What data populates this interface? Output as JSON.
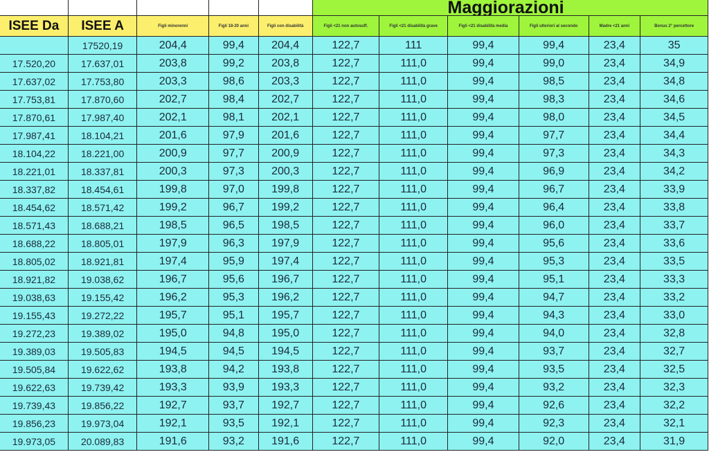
{
  "section_title": "Maggiorazioni",
  "columns": [
    "ISEE Da",
    "ISEE A",
    "Figli minorenni",
    "Figli 18-20 anni",
    "Figli con disabilità",
    "Figli <21 non autosuff.",
    "Figli <21 disabilità grave",
    "Figli <21 disabilità media",
    "Figli ulteriori al secondo",
    "Madre <21 anni",
    "Bonus 2° percettore"
  ],
  "colors": {
    "header_yellow": "#fbef6d",
    "header_green": "#9ef53c",
    "cell_cyan": "#8ef2f0"
  },
  "rows": [
    [
      "",
      "17520,19",
      "204,4",
      "99,4",
      "204,4",
      "122,7",
      "111",
      "99,4",
      "99,4",
      "23,4",
      "35"
    ],
    [
      "17.520,20",
      "17.637,01",
      "203,8",
      "99,2",
      "203,8",
      "122,7",
      "111,0",
      "99,4",
      "99,0",
      "23,4",
      "34,9"
    ],
    [
      "17.637,02",
      "17.753,80",
      "203,3",
      "98,6",
      "203,3",
      "122,7",
      "111,0",
      "99,4",
      "98,5",
      "23,4",
      "34,8"
    ],
    [
      "17.753,81",
      "17.870,60",
      "202,7",
      "98,4",
      "202,7",
      "122,7",
      "111,0",
      "99,4",
      "98,3",
      "23,4",
      "34,6"
    ],
    [
      "17.870,61",
      "17.987,40",
      "202,1",
      "98,1",
      "202,1",
      "122,7",
      "111,0",
      "99,4",
      "98,0",
      "23,4",
      "34,5"
    ],
    [
      "17.987,41",
      "18.104,21",
      "201,6",
      "97,9",
      "201,6",
      "122,7",
      "111,0",
      "99,4",
      "97,7",
      "23,4",
      "34,4"
    ],
    [
      "18.104,22",
      "18.221,00",
      "200,9",
      "97,7",
      "200,9",
      "122,7",
      "111,0",
      "99,4",
      "97,3",
      "23,4",
      "34,3"
    ],
    [
      "18.221,01",
      "18.337,81",
      "200,3",
      "97,3",
      "200,3",
      "122,7",
      "111,0",
      "99,4",
      "96,9",
      "23,4",
      "34,2"
    ],
    [
      "18.337,82",
      "18.454,61",
      "199,8",
      "97,0",
      "199,8",
      "122,7",
      "111,0",
      "99,4",
      "96,7",
      "23,4",
      "33,9"
    ],
    [
      "18.454,62",
      "18.571,42",
      "199,2",
      "96,7",
      "199,2",
      "122,7",
      "111,0",
      "99,4",
      "96,4",
      "23,4",
      "33,8"
    ],
    [
      "18.571,43",
      "18.688,21",
      "198,5",
      "96,5",
      "198,5",
      "122,7",
      "111,0",
      "99,4",
      "96,0",
      "23,4",
      "33,7"
    ],
    [
      "18.688,22",
      "18.805,01",
      "197,9",
      "96,3",
      "197,9",
      "122,7",
      "111,0",
      "99,4",
      "95,6",
      "23,4",
      "33,6"
    ],
    [
      "18.805,02",
      "18.921,81",
      "197,4",
      "95,9",
      "197,4",
      "122,7",
      "111,0",
      "99,4",
      "95,3",
      "23,4",
      "33,5"
    ],
    [
      "18.921,82",
      "19.038,62",
      "196,7",
      "95,6",
      "196,7",
      "122,7",
      "111,0",
      "99,4",
      "95,1",
      "23,4",
      "33,3"
    ],
    [
      "19.038,63",
      "19.155,42",
      "196,2",
      "95,3",
      "196,2",
      "122,7",
      "111,0",
      "99,4",
      "94,7",
      "23,4",
      "33,2"
    ],
    [
      "19.155,43",
      "19.272,22",
      "195,7",
      "95,1",
      "195,7",
      "122,7",
      "111,0",
      "99,4",
      "94,3",
      "23,4",
      "33,0"
    ],
    [
      "19.272,23",
      "19.389,02",
      "195,0",
      "94,8",
      "195,0",
      "122,7",
      "111,0",
      "99,4",
      "94,0",
      "23,4",
      "32,8"
    ],
    [
      "19.389,03",
      "19.505,83",
      "194,5",
      "94,5",
      "194,5",
      "122,7",
      "111,0",
      "99,4",
      "93,7",
      "23,4",
      "32,7"
    ],
    [
      "19.505,84",
      "19.622,62",
      "193,8",
      "94,2",
      "193,8",
      "122,7",
      "111,0",
      "99,4",
      "93,5",
      "23,4",
      "32,5"
    ],
    [
      "19.622,63",
      "19.739,42",
      "193,3",
      "93,9",
      "193,3",
      "122,7",
      "111,0",
      "99,4",
      "93,2",
      "23,4",
      "32,3"
    ],
    [
      "19.739,43",
      "19.856,22",
      "192,7",
      "93,7",
      "192,7",
      "122,7",
      "111,0",
      "99,4",
      "92,6",
      "23,4",
      "32,2"
    ],
    [
      "19.856,23",
      "19.973,04",
      "192,1",
      "93,5",
      "192,1",
      "122,7",
      "111,0",
      "99,4",
      "92,3",
      "23,4",
      "32,1"
    ],
    [
      "19.973,05",
      "20.089,83",
      "191,6",
      "93,2",
      "191,6",
      "122,7",
      "111,0",
      "99,4",
      "92,0",
      "23,4",
      "31,9"
    ]
  ]
}
